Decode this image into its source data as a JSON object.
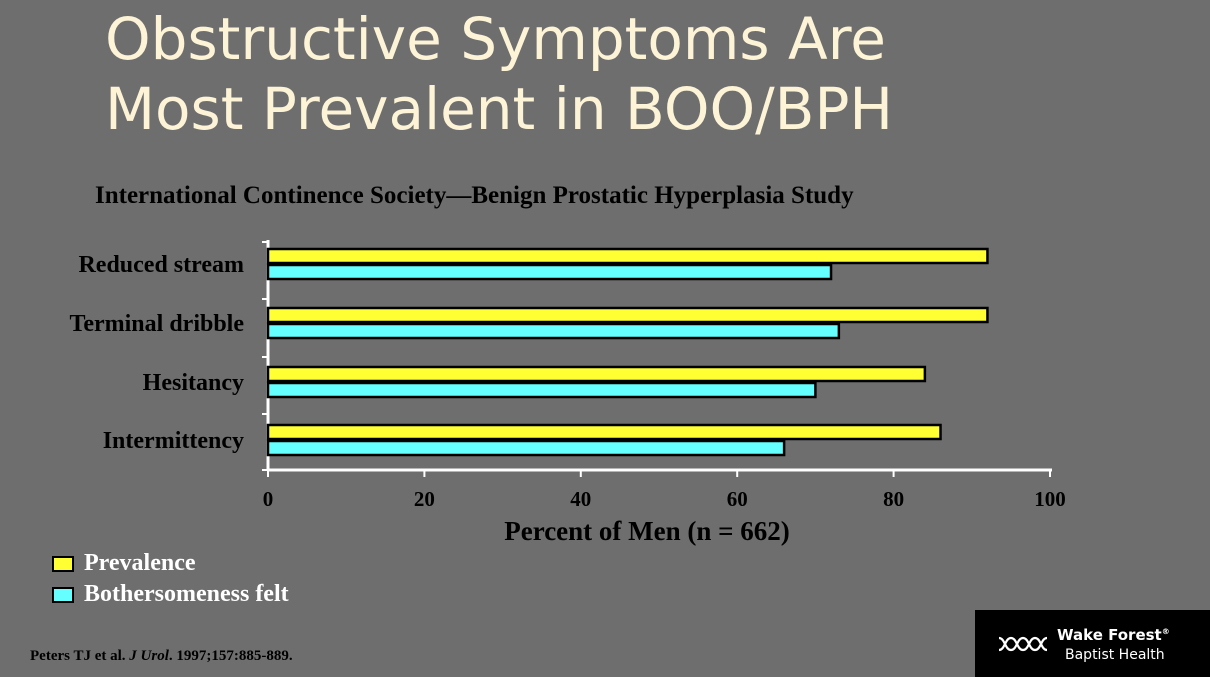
{
  "slide": {
    "title_line1": "Obstructive Symptoms Are",
    "title_line2": "Most Prevalent in BOO/BPH"
  },
  "chart_data": {
    "type": "bar",
    "orientation": "horizontal",
    "title": "International Continence Society—Benign Prostatic Hyperplasia Study",
    "categories": [
      "Reduced stream",
      "Terminal dribble",
      "Hesitancy",
      "Intermittency"
    ],
    "series": [
      {
        "name": "Prevalence",
        "color": "#ffff33",
        "values": [
          92,
          92,
          84,
          86
        ]
      },
      {
        "name": "Bothersomeness felt",
        "color": "#66ffff",
        "values": [
          72,
          73,
          70,
          66
        ]
      }
    ],
    "xlabel": "Percent of Men (n = 662)",
    "xlim": [
      0,
      100
    ],
    "xticks": [
      "0",
      "20",
      "40",
      "60",
      "80",
      "100"
    ],
    "grid": false,
    "legend_position": "bottom-left"
  },
  "legend": {
    "items": [
      {
        "label": "Prevalence",
        "color": "#ffff33"
      },
      {
        "label": "Bothersomeness felt",
        "color": "#66ffff"
      }
    ]
  },
  "citation": {
    "authors": "Peters TJ et al. ",
    "journal": "J Urol",
    "details": ". 1997;157:885-889."
  },
  "logo": {
    "name": "Wake Forest",
    "mark": "®",
    "subtitle": "Baptist Health"
  }
}
